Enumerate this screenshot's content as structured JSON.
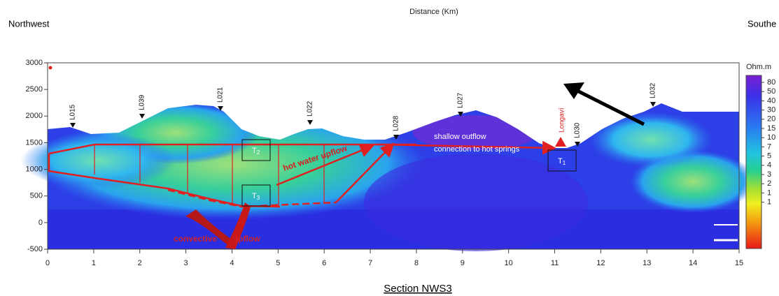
{
  "header": {
    "top": "Distance (Km)",
    "left": "Northwest",
    "right": "Southe"
  },
  "y_axis": {
    "ticks": [
      "3000",
      "2500",
      "2000",
      "1500",
      "1000",
      "500",
      "0",
      "-500"
    ]
  },
  "x_axis": {
    "ticks": [
      "0",
      "1",
      "2",
      "3",
      "4",
      "5",
      "6",
      "7",
      "8",
      "9",
      "10",
      "11",
      "12",
      "13",
      "14",
      "15"
    ]
  },
  "stations": [
    "L015",
    "L039",
    "L021",
    "L022",
    "L028",
    "L027",
    "L030",
    "L032"
  ],
  "volcano": "Longaví",
  "annotations": {
    "t2": {
      "base": "T",
      "sub": "2"
    },
    "t3": {
      "base": "T",
      "sub": "3"
    },
    "t1": {
      "base": "T",
      "sub": "1"
    },
    "hot_water": "hot water upflow",
    "outflow_1": "shallow outflow",
    "outflow_2": "connection to hot springs",
    "convective": "convective",
    "upflow": "upflow"
  },
  "colorbar": {
    "unit": "Ohm.m",
    "labels": [
      "80",
      "50",
      "40",
      "30",
      "20",
      "15",
      "10",
      "7",
      "5",
      "4",
      "3",
      "2",
      "1",
      "1"
    ]
  },
  "caption": "Section NWS3"
}
